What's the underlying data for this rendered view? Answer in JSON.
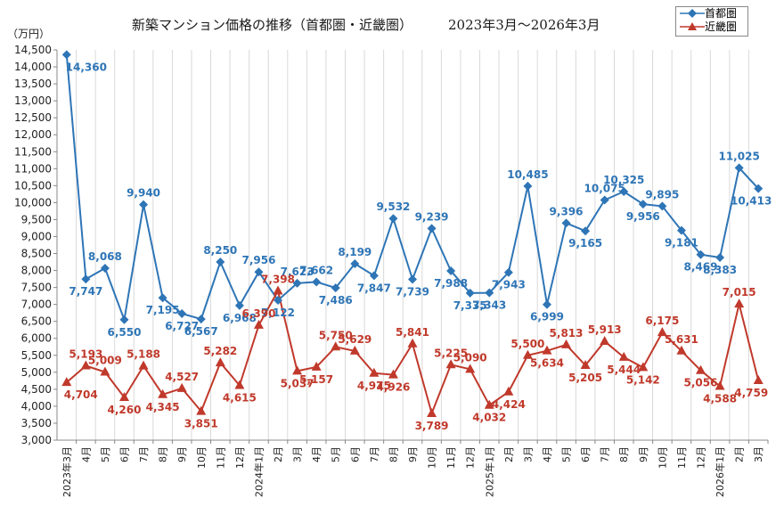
{
  "chart_data": {
    "type": "line",
    "title": "新築マンション価格の推移（首都圏・近畿圏）",
    "subtitle": "2023年3月～2026年3月",
    "ylabel": "（万円）",
    "ylim": [
      3000,
      14500
    ],
    "ytick_step": 500,
    "grid": "vertical",
    "legend_position": "top-right",
    "categories": [
      "2023年3月",
      "4月",
      "5月",
      "6月",
      "7月",
      "8月",
      "9月",
      "10月",
      "11月",
      "12月",
      "2024年1月",
      "2月",
      "3月",
      "4月",
      "5月",
      "6月",
      "7月",
      "8月",
      "9月",
      "10月",
      "11月",
      "12月",
      "2025年1月",
      "2月",
      "3月",
      "4月",
      "5月",
      "6月",
      "7月",
      "8月",
      "9月",
      "10月",
      "11月",
      "12月",
      "2026年1月",
      "2月",
      "3月"
    ],
    "series": [
      {
        "name": "首都圏",
        "color": "#2e75b6",
        "marker": "diamond",
        "values": [
          14360,
          7747,
          8068,
          6550,
          9940,
          7195,
          6727,
          6567,
          8250,
          6968,
          7956,
          7122,
          7623,
          7662,
          7486,
          8199,
          7847,
          9532,
          7739,
          9239,
          7988,
          7335,
          7343,
          7943,
          10485,
          6999,
          9396,
          9165,
          10075,
          10325,
          9956,
          9895,
          9181,
          8469,
          8383,
          11025,
          10413
        ],
        "labels": [
          "14,360",
          "7,747",
          "8,068",
          "6,550",
          "9,940",
          "7,195",
          "6,727",
          "6,567",
          "8,250",
          "6,968",
          "7,956",
          "7,122",
          "7,623",
          "7,662",
          "7,486",
          "8,199",
          "7,847",
          "9,532",
          "7,739",
          "9,239",
          "7,988",
          "7,335",
          "7,343",
          "7,943",
          "10,485",
          "6,999",
          "9,396",
          "9,165",
          "10,075",
          "10,325",
          "9,956",
          "9,895",
          "9,181",
          "8,469",
          "8,383",
          "11,025",
          "10,413"
        ]
      },
      {
        "name": "近畿圏",
        "color": "#c0392b",
        "marker": "triangle",
        "values": [
          4704,
          5193,
          5009,
          4260,
          5188,
          4345,
          4527,
          3851,
          5282,
          4615,
          6390,
          7398,
          5037,
          5157,
          5750,
          5629,
          4975,
          4926,
          5841,
          3789,
          5225,
          5090,
          4032,
          4424,
          5500,
          5634,
          5813,
          5205,
          5913,
          5444,
          5142,
          6175,
          5631,
          5056,
          4588,
          7015,
          4759
        ],
        "labels": [
          "4,704",
          "5,193",
          "5,009",
          "4,260",
          "5,188",
          "4,345",
          "4,527",
          "3,851",
          "5,282",
          "4,615",
          "6,390",
          "7,398",
          "5,037",
          "5,157",
          "5,750",
          "5,629",
          "4,975",
          "4,926",
          "5,841",
          "3,789",
          "5,225",
          "5,090",
          "4,032",
          "4,424",
          "5,500",
          "5,634",
          "5,813",
          "5,205",
          "5,913",
          "5,444",
          "5,142",
          "6,175",
          "5,631",
          "5,056",
          "4,588",
          "7,015",
          "4,759"
        ]
      }
    ]
  }
}
